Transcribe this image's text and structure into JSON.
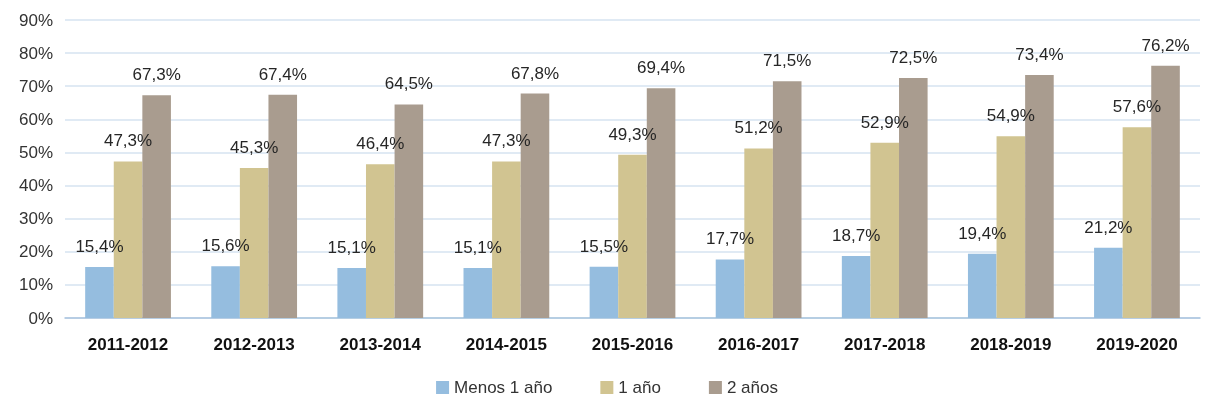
{
  "chart_data": {
    "type": "bar",
    "categories": [
      "2011-2012",
      "2012-2013",
      "2013-2014",
      "2014-2015",
      "2015-2016",
      "2016-2017",
      "2017-2018",
      "2018-2019",
      "2019-2020"
    ],
    "series": [
      {
        "name": "Menos 1 año",
        "color": "#95bddf",
        "values": [
          15.4,
          15.6,
          15.1,
          15.1,
          15.5,
          17.7,
          18.7,
          19.4,
          21.2
        ],
        "value_labels": [
          "15,4%",
          "15,6%",
          "15,1%",
          "15,1%",
          "15,5%",
          "17,7%",
          "18,7%",
          "19,4%",
          "21,2%"
        ]
      },
      {
        "name": "1 año",
        "color": "#d1c491",
        "values": [
          47.3,
          45.3,
          46.4,
          47.3,
          49.3,
          51.2,
          52.9,
          54.9,
          57.6
        ],
        "value_labels": [
          "47,3%",
          "45,3%",
          "46,4%",
          "47,3%",
          "49,3%",
          "51,2%",
          "52,9%",
          "54,9%",
          "57,6%"
        ]
      },
      {
        "name": "2 años",
        "color": "#a99c8f",
        "values": [
          67.3,
          67.4,
          64.5,
          67.8,
          69.4,
          71.5,
          72.5,
          73.4,
          76.2
        ],
        "value_labels": [
          "67,3%",
          "67,4%",
          "64,5%",
          "67,8%",
          "69,4%",
          "71,5%",
          "72,5%",
          "73,4%",
          "76,2%"
        ]
      }
    ],
    "ylim": [
      0,
      90
    ],
    "yticks": [
      {
        "value": 0,
        "label": "0%"
      },
      {
        "value": 10,
        "label": "10%"
      },
      {
        "value": 20,
        "label": "20%"
      },
      {
        "value": 30,
        "label": "30%"
      },
      {
        "value": 40,
        "label": "40%"
      },
      {
        "value": 50,
        "label": "50%"
      },
      {
        "value": 60,
        "label": "60%"
      },
      {
        "value": 70,
        "label": "70%"
      },
      {
        "value": 80,
        "label": "80%"
      },
      {
        "value": 90,
        "label": "90%"
      }
    ],
    "grid": "y",
    "legend": "bottom"
  }
}
